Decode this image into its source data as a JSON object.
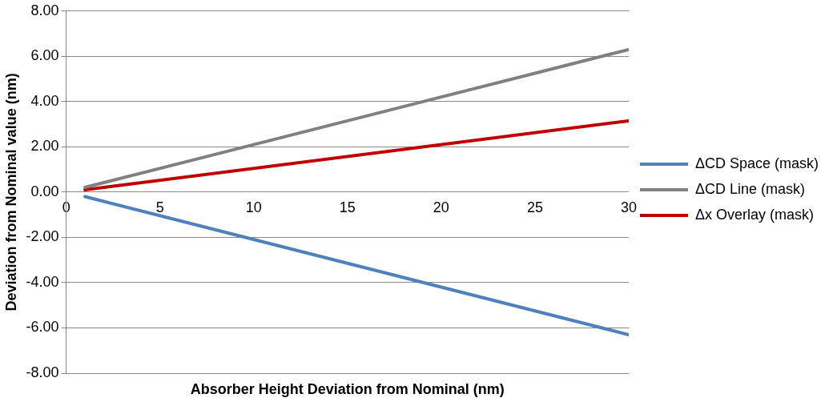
{
  "chart_data": {
    "type": "line",
    "xlabel": "Absorber Height Deviation from Nominal (nm)",
    "ylabel": "Deviation from Nominal value (nm)",
    "x": [
      1,
      30
    ],
    "series": [
      {
        "name": "ΔCD Space (mask)",
        "color": "#4f81bd",
        "values": [
          -0.2,
          -6.3
        ]
      },
      {
        "name": "ΔCD Line (mask)",
        "color": "#808080",
        "values": [
          0.21,
          6.3
        ]
      },
      {
        "name": "Δx Overlay (mask)",
        "color": "#c00000",
        "values": [
          0.1,
          3.15
        ]
      }
    ],
    "xlim": [
      0,
      30
    ],
    "xticks": [
      0,
      5,
      10,
      15,
      20,
      25,
      30
    ],
    "ylim": [
      -8,
      8
    ],
    "yticks": [
      {
        "value": -8,
        "label": "-8.00"
      },
      {
        "value": -6,
        "label": "-6.00"
      },
      {
        "value": -4,
        "label": "-4.00"
      },
      {
        "value": -2,
        "label": "-2.00"
      },
      {
        "value": 0,
        "label": "0.00"
      },
      {
        "value": 2,
        "label": "2.00"
      },
      {
        "value": 4,
        "label": "4.00"
      },
      {
        "value": 6,
        "label": "6.00"
      },
      {
        "value": 8,
        "label": "8.00"
      }
    ],
    "grid": "y",
    "legend": "right",
    "marker": "none",
    "line_style": "solid"
  }
}
